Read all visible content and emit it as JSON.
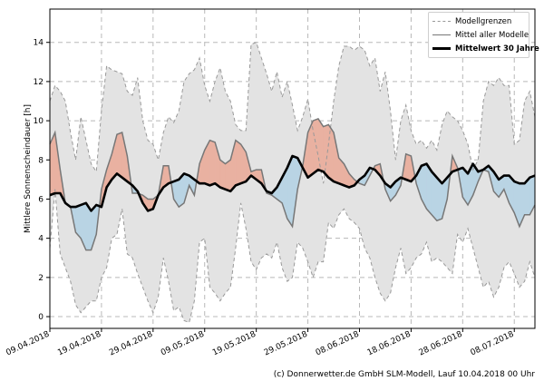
{
  "chart_data": {
    "type": "area",
    "ylabel": "Mittlere Sonnenscheindauer [h]",
    "xlabel": "",
    "ylim": [
      -0.6,
      15.7
    ],
    "yticks": [
      0,
      2,
      4,
      6,
      8,
      10,
      12,
      14
    ],
    "ytick_labels": [
      "0",
      "2",
      "4",
      "6",
      "8",
      "10",
      "12",
      "14"
    ],
    "x_range_days": [
      0,
      94
    ],
    "xticks_days": [
      0,
      10,
      20,
      30,
      40,
      50,
      60,
      70,
      80,
      90
    ],
    "xtick_labels": [
      "09.04.2018",
      "19.04.2018",
      "29.04.2018",
      "09.05.2018",
      "19.05.2018",
      "29.05.2018",
      "08.06.2018",
      "18.06.2018",
      "28.06.2018",
      "08.07.2018"
    ],
    "grid": true,
    "legend_position": "top-right",
    "legend": [
      "Modellgrenzen",
      "Mittel aller Modelle",
      "Mittelwert 30 Jahre"
    ],
    "colors": {
      "band_fill": "#e3e3e3",
      "band_line": "#999999",
      "above_fill": "#e9b1a1",
      "below_fill": "#b9d4e4",
      "mean_models": "#777777",
      "climatology": "#000000"
    },
    "series": [
      {
        "name": "Modellgrenzen (max)",
        "x": [
          0,
          1,
          2,
          3,
          4,
          5,
          6,
          7,
          8,
          9,
          10,
          11,
          12,
          13,
          14,
          15,
          16,
          17,
          18,
          19,
          20,
          21,
          22,
          23,
          24,
          25,
          26,
          27,
          28,
          29,
          30,
          31,
          32,
          33,
          34,
          35,
          36,
          37,
          38,
          39,
          40,
          41,
          42,
          43,
          44,
          45,
          46,
          47,
          48,
          49,
          50,
          51,
          52,
          53,
          54,
          55,
          56,
          57,
          58,
          59,
          60,
          61,
          62,
          63,
          64,
          65,
          66,
          67,
          68,
          69,
          70,
          71,
          72,
          73,
          74,
          75,
          76,
          77,
          78,
          79,
          80,
          81,
          82,
          83,
          84,
          85,
          86,
          87,
          88,
          89,
          90,
          91,
          92,
          93,
          94
        ],
        "values": [
          11.0,
          11.8,
          11.5,
          11.0,
          9.4,
          8.0,
          10.2,
          9.0,
          7.8,
          7.4,
          10.5,
          12.8,
          12.6,
          12.5,
          12.4,
          11.5,
          11.3,
          12.2,
          10.0,
          9.0,
          8.8,
          8.0,
          9.4,
          10.2,
          9.9,
          10.5,
          12.0,
          12.4,
          12.6,
          13.2,
          11.8,
          11.0,
          12.0,
          12.7,
          11.5,
          11.0,
          9.8,
          9.5,
          9.5,
          13.9,
          14.0,
          13.2,
          12.4,
          11.5,
          12.5,
          11.2,
          12.0,
          10.8,
          9.5,
          10.2,
          11.1,
          9.5,
          8.2,
          6.8,
          8.8,
          11.0,
          12.8,
          13.8,
          13.8,
          13.6,
          13.8,
          13.6,
          12.8,
          13.2,
          11.5,
          12.5,
          10.5,
          8.0,
          10.0,
          10.8,
          9.5,
          8.8,
          9.0,
          8.6,
          9.0,
          8.5,
          9.8,
          10.5,
          10.2,
          10.0,
          9.5,
          8.8,
          7.5,
          8.0,
          11.0,
          12.0,
          11.8,
          12.2,
          11.8,
          11.8,
          8.8,
          9.0,
          11.0,
          11.5,
          10.2
        ]
      },
      {
        "name": "Modellgrenzen (min)",
        "x": [
          0,
          1,
          2,
          3,
          4,
          5,
          6,
          7,
          8,
          9,
          10,
          11,
          12,
          13,
          14,
          15,
          16,
          17,
          18,
          19,
          20,
          21,
          22,
          23,
          24,
          25,
          26,
          27,
          28,
          29,
          30,
          31,
          32,
          33,
          34,
          35,
          36,
          37,
          38,
          39,
          40,
          41,
          42,
          43,
          44,
          45,
          46,
          47,
          48,
          49,
          50,
          51,
          52,
          53,
          54,
          55,
          56,
          57,
          58,
          59,
          60,
          61,
          62,
          63,
          64,
          65,
          66,
          67,
          68,
          69,
          70,
          71,
          72,
          73,
          74,
          75,
          76,
          77,
          78,
          79,
          80,
          81,
          82,
          83,
          84,
          85,
          86,
          87,
          88,
          89,
          90,
          91,
          92,
          93,
          94
        ],
        "values": [
          3.5,
          6.5,
          3.2,
          2.5,
          1.8,
          0.6,
          0.2,
          0.5,
          0.8,
          0.8,
          2.0,
          2.5,
          4.0,
          4.2,
          5.5,
          3.2,
          3.0,
          2.2,
          1.5,
          0.8,
          0.2,
          1.0,
          3.0,
          1.8,
          0.3,
          0.5,
          -0.2,
          -0.3,
          0.8,
          3.8,
          4.0,
          1.5,
          1.2,
          0.8,
          1.2,
          1.5,
          3.5,
          5.8,
          4.5,
          2.8,
          2.4,
          3.0,
          3.2,
          3.0,
          3.8,
          2.5,
          1.8,
          2.0,
          3.8,
          3.5,
          2.8,
          2.0,
          2.8,
          2.8,
          4.8,
          4.5,
          5.2,
          5.5,
          5.0,
          4.8,
          4.5,
          3.5,
          3.0,
          2.0,
          1.2,
          0.8,
          1.2,
          2.5,
          3.5,
          2.2,
          2.5,
          3.0,
          3.2,
          3.8,
          2.8,
          3.0,
          2.8,
          2.5,
          2.2,
          4.2,
          3.8,
          4.5,
          3.5,
          2.5,
          1.5,
          1.8,
          1.0,
          1.5,
          2.5,
          2.8,
          2.2,
          1.5,
          1.8,
          2.8,
          2.0
        ]
      },
      {
        "name": "Mittel aller Modelle",
        "x": [
          0,
          1,
          2,
          3,
          4,
          5,
          6,
          7,
          8,
          9,
          10,
          11,
          12,
          13,
          14,
          15,
          16,
          17,
          18,
          19,
          20,
          21,
          22,
          23,
          24,
          25,
          26,
          27,
          28,
          29,
          30,
          31,
          32,
          33,
          34,
          35,
          36,
          37,
          38,
          39,
          40,
          41,
          42,
          43,
          44,
          45,
          46,
          47,
          48,
          49,
          50,
          51,
          52,
          53,
          54,
          55,
          56,
          57,
          58,
          59,
          60,
          61,
          62,
          63,
          64,
          65,
          66,
          67,
          68,
          69,
          70,
          71,
          72,
          73,
          74,
          75,
          76,
          77,
          78,
          79,
          80,
          81,
          82,
          83,
          84,
          85,
          86,
          87,
          88,
          89,
          90,
          91,
          92,
          93,
          94
        ],
        "values": [
          8.8,
          9.4,
          7.5,
          5.8,
          5.6,
          4.3,
          4.0,
          3.4,
          3.4,
          4.2,
          6.5,
          7.5,
          8.3,
          9.3,
          9.4,
          8.2,
          6.3,
          6.3,
          6.2,
          6.0,
          6.0,
          6.2,
          7.7,
          7.7,
          6.0,
          5.6,
          5.8,
          6.7,
          6.2,
          7.8,
          8.5,
          9.0,
          8.9,
          8.0,
          7.8,
          8.0,
          9.0,
          8.8,
          8.4,
          7.4,
          7.5,
          7.5,
          6.3,
          6.2,
          6.0,
          5.8,
          5.0,
          4.6,
          6.5,
          7.7,
          9.4,
          10.0,
          10.1,
          9.7,
          9.8,
          9.4,
          8.1,
          7.8,
          7.3,
          7.0,
          6.8,
          6.7,
          7.2,
          7.7,
          7.8,
          6.5,
          5.9,
          6.2,
          6.7,
          8.3,
          8.2,
          6.8,
          6.0,
          5.5,
          5.2,
          4.9,
          5.0,
          6.0,
          8.2,
          7.6,
          6.1,
          5.7,
          6.2,
          6.9,
          7.5,
          7.4,
          6.4,
          6.1,
          6.5,
          5.8,
          5.3,
          4.6,
          5.2,
          5.2,
          5.7
        ]
      },
      {
        "name": "Mittelwert 30 Jahre",
        "x": [
          0,
          1,
          2,
          3,
          4,
          5,
          6,
          7,
          8,
          9,
          10,
          11,
          12,
          13,
          14,
          15,
          16,
          17,
          18,
          19,
          20,
          21,
          22,
          23,
          24,
          25,
          26,
          27,
          28,
          29,
          30,
          31,
          32,
          33,
          34,
          35,
          36,
          37,
          38,
          39,
          40,
          41,
          42,
          43,
          44,
          45,
          46,
          47,
          48,
          49,
          50,
          51,
          52,
          53,
          54,
          55,
          56,
          57,
          58,
          59,
          60,
          61,
          62,
          63,
          64,
          65,
          66,
          67,
          68,
          69,
          70,
          71,
          72,
          73,
          74,
          75,
          76,
          77,
          78,
          79,
          80,
          81,
          82,
          83,
          84,
          85,
          86,
          87,
          88,
          89,
          90,
          91,
          92,
          93,
          94
        ],
        "values": [
          6.2,
          6.3,
          6.3,
          5.8,
          5.6,
          5.6,
          5.7,
          5.8,
          5.4,
          5.7,
          5.6,
          6.6,
          7.0,
          7.3,
          7.1,
          6.9,
          6.7,
          6.4,
          5.8,
          5.4,
          5.5,
          6.2,
          6.6,
          6.8,
          6.9,
          7.0,
          7.3,
          7.2,
          7.0,
          6.8,
          6.8,
          6.7,
          6.8,
          6.6,
          6.5,
          6.4,
          6.7,
          6.8,
          6.9,
          7.2,
          7.0,
          6.8,
          6.4,
          6.3,
          6.6,
          7.1,
          7.6,
          8.2,
          8.1,
          7.6,
          7.1,
          7.3,
          7.5,
          7.4,
          7.1,
          6.9,
          6.8,
          6.7,
          6.6,
          6.7,
          7.0,
          7.2,
          7.6,
          7.5,
          7.2,
          6.8,
          6.6,
          6.9,
          7.1,
          7.0,
          6.9,
          7.2,
          7.7,
          7.8,
          7.4,
          7.1,
          6.8,
          7.1,
          7.4,
          7.5,
          7.6,
          7.3,
          7.8,
          7.4,
          7.5,
          7.7,
          7.4,
          7.0,
          7.2,
          7.2,
          6.9,
          6.8,
          6.8,
          7.1,
          7.2
        ]
      }
    ]
  },
  "footer": {
    "credit": "(c) Donnerwetter.de GmbH SLM-Modell, Lauf 10.04.2018 00 Uhr"
  }
}
